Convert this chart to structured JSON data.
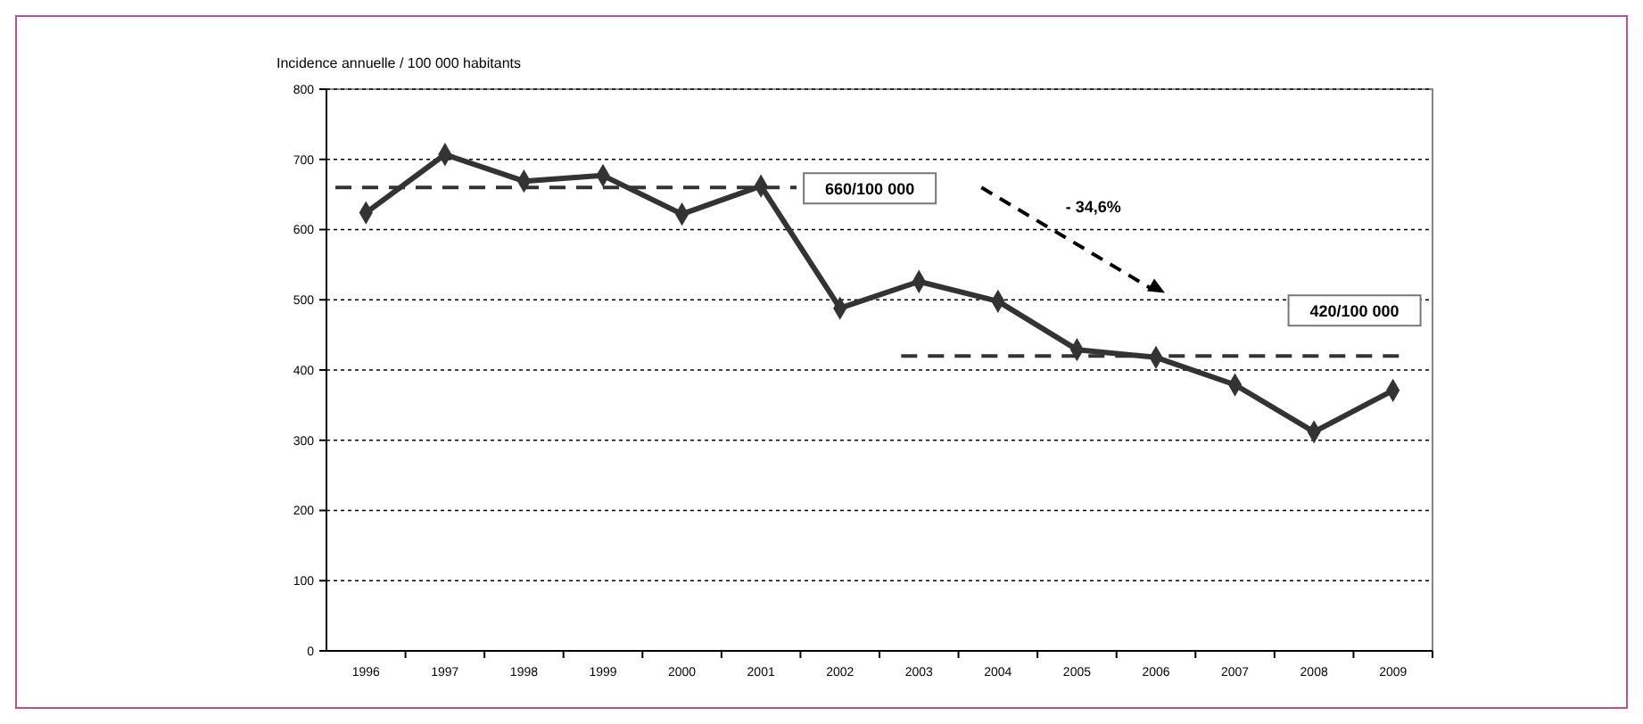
{
  "chart_data": {
    "type": "line",
    "ylabel": "Incidence annuelle / 100 000 habitants",
    "categories": [
      "1996",
      "1997",
      "1998",
      "1999",
      "2000",
      "2001",
      "2002",
      "2003",
      "2004",
      "2005",
      "2006",
      "2007",
      "2008",
      "2009"
    ],
    "series": [
      {
        "color": "#333333",
        "values": [
          624,
          707,
          669,
          677,
          622,
          662,
          488,
          526,
          498,
          429,
          418,
          379,
          312,
          371
        ]
      }
    ],
    "ylim": [
      0,
      800
    ],
    "yticks": [
      0,
      100,
      200,
      300,
      400,
      500,
      600,
      700,
      800
    ],
    "grid": "y",
    "marker": "diamond",
    "line_style": "solid",
    "ref_lines": [
      {
        "axis": "y",
        "value": 660,
        "label": "660/100 000",
        "color": "#333333",
        "line_style": "dashed"
      },
      {
        "axis": "y",
        "value": 420,
        "label": "420/100 000",
        "color": "#333333",
        "line_style": "dashed"
      }
    ],
    "annotations": [
      "- 34,6%"
    ]
  }
}
